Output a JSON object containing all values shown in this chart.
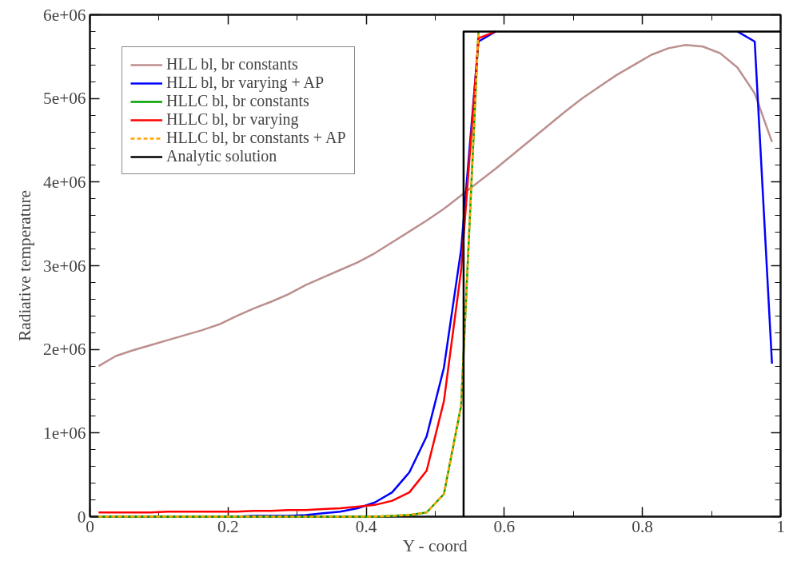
{
  "chart_data": {
    "type": "line",
    "xlabel": "Y - coord",
    "ylabel": "Radiative temperature",
    "x": [
      0.0125,
      0.0375,
      0.0625,
      0.0875,
      0.1125,
      0.1375,
      0.1625,
      0.1875,
      0.2125,
      0.2375,
      0.2625,
      0.2875,
      0.3125,
      0.3375,
      0.3625,
      0.3875,
      0.4125,
      0.4375,
      0.4625,
      0.4875,
      0.5125,
      0.5375,
      0.5625,
      0.5875,
      0.6125,
      0.6375,
      0.6625,
      0.6875,
      0.7125,
      0.7375,
      0.7625,
      0.7875,
      0.8125,
      0.8375,
      0.8625,
      0.8875,
      0.9125,
      0.9375,
      0.9625,
      0.9875
    ],
    "xlim": [
      0,
      1
    ],
    "ylim": [
      0,
      6000000
    ],
    "xticks": [
      0,
      0.2,
      0.4,
      0.6,
      0.8,
      1
    ],
    "yticks": [
      0,
      {
        "value": 1000000,
        "label": "1e+06"
      },
      {
        "value": 2000000,
        "label": "2e+06"
      },
      {
        "value": 3000000,
        "label": "3e+06"
      },
      {
        "value": 4000000,
        "label": "4e+06"
      },
      {
        "value": 5000000,
        "label": "5e+06"
      },
      {
        "value": 6000000,
        "label": "6e+06"
      }
    ],
    "grid": false,
    "legend": "top left",
    "marker": "none",
    "series": [
      {
        "name": "HLL bl, br constants",
        "color": "#bc8f8f",
        "line_style": "solid",
        "values": [
          1800000,
          1920000,
          1990000,
          2050000,
          2110000,
          2170000,
          2230000,
          2300000,
          2400000,
          2490000,
          2570000,
          2660000,
          2770000,
          2860000,
          2950000,
          3040000,
          3150000,
          3280000,
          3410000,
          3540000,
          3680000,
          3840000,
          4000000,
          4160000,
          4330000,
          4500000,
          4670000,
          4840000,
          5000000,
          5140000,
          5280000,
          5400000,
          5520000,
          5600000,
          5640000,
          5620000,
          5540000,
          5370000,
          5060000,
          4480000
        ]
      },
      {
        "name": "HLL bl, br varying + AP",
        "color": "#0000ff",
        "line_style": "solid",
        "values": [
          null,
          null,
          null,
          null,
          null,
          null,
          null,
          null,
          0,
          10000,
          10000,
          10000,
          20000,
          40000,
          60000,
          100000,
          170000,
          290000,
          530000,
          960000,
          1780000,
          3200000,
          5680000,
          5800000,
          null,
          null,
          null,
          null,
          null,
          null,
          null,
          null,
          null,
          null,
          null,
          null,
          null,
          5800000,
          5680000,
          1830000
        ]
      },
      {
        "name": "HLLC bl, br constants",
        "color": "#00a000",
        "line_style": "solid",
        "values": [
          0,
          0,
          0,
          0,
          0,
          0,
          0,
          0,
          0,
          0,
          0,
          0,
          0,
          0,
          0,
          0,
          0,
          10000,
          20000,
          50000,
          270000,
          1330000,
          5800000,
          null,
          null,
          null,
          null,
          null,
          null,
          null,
          null,
          null,
          null,
          null,
          null,
          null,
          null,
          null,
          null,
          null
        ]
      },
      {
        "name": "HLLC bl, br varying",
        "color": "#ff0000",
        "line_style": "solid",
        "values": [
          50000,
          50000,
          50000,
          50000,
          60000,
          60000,
          60000,
          60000,
          60000,
          70000,
          70000,
          80000,
          80000,
          90000,
          100000,
          120000,
          140000,
          190000,
          290000,
          550000,
          1380000,
          2950000,
          5720000,
          5800000,
          null,
          null,
          null,
          null,
          null,
          null,
          null,
          null,
          null,
          null,
          null,
          null,
          null,
          null,
          null,
          null
        ]
      },
      {
        "name": "HLLC bl, br constants + AP",
        "color": "#ffa500",
        "line_style": "dashed",
        "values": [
          0,
          0,
          0,
          0,
          0,
          0,
          0,
          0,
          0,
          0,
          0,
          0,
          0,
          0,
          0,
          0,
          0,
          10000,
          20000,
          50000,
          270000,
          1330000,
          5800000,
          null,
          null,
          null,
          null,
          null,
          null,
          null,
          null,
          null,
          null,
          null,
          null,
          null,
          null,
          null,
          null,
          null
        ]
      },
      {
        "name": "Analytic solution",
        "type": "step",
        "color": "#000000",
        "line_style": "solid",
        "x": [
          0.541,
          1
        ],
        "values": [
          0,
          5800000
        ]
      }
    ]
  }
}
